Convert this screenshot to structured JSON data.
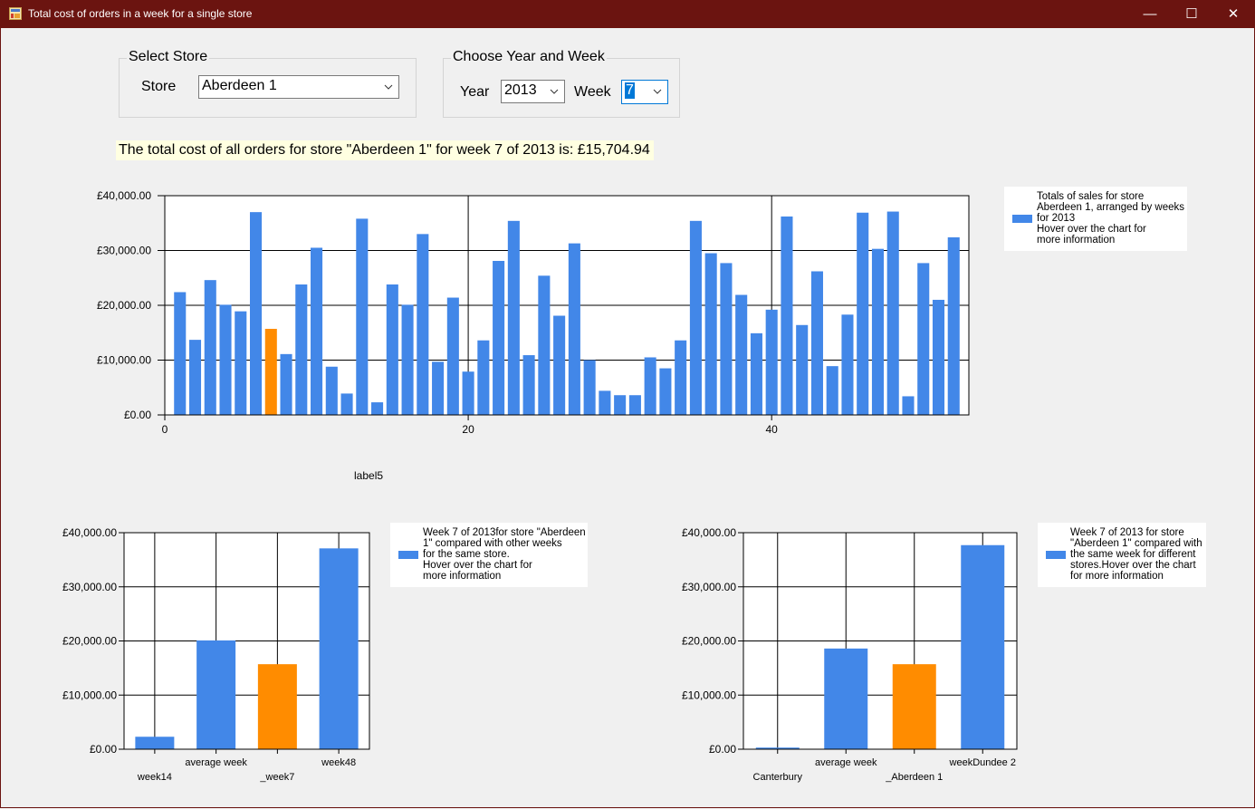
{
  "window": {
    "title": "Total cost of orders in a week for a single store",
    "controls": {
      "minimize": "—",
      "maximize": "☐",
      "close": "✕"
    }
  },
  "store_group": {
    "title": "Select Store",
    "store_label": "Store",
    "store_value": "Aberdeen 1"
  },
  "period_group": {
    "title": "Choose Year and Week",
    "year_label": "Year",
    "year_value": "2013",
    "week_label": "Week",
    "week_value": "7"
  },
  "summary_text": "The total cost of all orders for store \"Aberdeen 1\" for week 7 of 2013 is: £15,704.94",
  "label5": "label5",
  "colors": {
    "bar": "#4287e8",
    "highlight": "#ff8c00",
    "titlebar": "#6b1410",
    "summary_bg": "#ffffe1"
  },
  "chart_data": [
    {
      "type": "bar",
      "title": "",
      "legend": "Totals of sales for store\nAberdeen 1, arranged by weeks\nfor 2013\nHover over the chart for\nmore information",
      "x": [
        1,
        2,
        3,
        4,
        5,
        6,
        7,
        8,
        9,
        10,
        11,
        12,
        13,
        14,
        15,
        16,
        17,
        18,
        19,
        20,
        21,
        22,
        23,
        24,
        25,
        26,
        27,
        28,
        29,
        30,
        31,
        32,
        33,
        34,
        35,
        36,
        37,
        38,
        39,
        40,
        41,
        42,
        43,
        44,
        45,
        46,
        47,
        48,
        49,
        50,
        51,
        52
      ],
      "values": [
        22400,
        13700,
        24600,
        20100,
        18900,
        37000,
        15704.94,
        11100,
        23800,
        30500,
        8800,
        3900,
        35800,
        2300,
        23800,
        20100,
        33000,
        9700,
        21400,
        7900,
        13600,
        28100,
        35400,
        10900,
        25400,
        18100,
        31300,
        10000,
        4400,
        3600,
        3600,
        10500,
        8500,
        13600,
        35400,
        29500,
        27700,
        21900,
        14900,
        19200,
        36200,
        16400,
        26200,
        8900,
        18300,
        36900,
        30300,
        37100,
        3400,
        27700,
        21000,
        32400
      ],
      "highlight_x": 7,
      "xlim": [
        0,
        53
      ],
      "x_ticks": [
        0,
        20,
        40
      ],
      "ylim": [
        0,
        40000
      ],
      "y_ticks": [
        "£0.00",
        "£10,000.00",
        "£20,000.00",
        "£30,000.00",
        "£40,000.00"
      ],
      "grid": true,
      "legend_position": "right"
    },
    {
      "type": "bar",
      "title": "",
      "legend": "Week 7 of 2013for store \"Aberdeen\n1\" compared with other weeks\nfor the same store.\nHover over the chart for\nmore information",
      "categories": [
        "week14",
        "average week",
        "_week7",
        "week48"
      ],
      "values": [
        2300,
        20100,
        15704.94,
        37100
      ],
      "highlight_index": 2,
      "ylim": [
        0,
        40000
      ],
      "y_ticks": [
        "£0.00",
        "£10,000.00",
        "£20,000.00",
        "£30,000.00",
        "£40,000.00"
      ],
      "grid": true,
      "legend_position": "right"
    },
    {
      "type": "bar",
      "title": "",
      "legend": "Week 7 of 2013 for store\n\"Aberdeen 1\" compared with\nthe same week for different\nstores.Hover over the chart\nfor more information",
      "categories": [
        "Canterbury",
        "average week",
        "_Aberdeen 1",
        "weekDundee 2"
      ],
      "values": [
        300,
        18600,
        15704.94,
        37700
      ],
      "highlight_index": 2,
      "ylim": [
        0,
        40000
      ],
      "y_ticks": [
        "£0.00",
        "£10,000.00",
        "£20,000.00",
        "£30,000.00",
        "£40,000.00"
      ],
      "grid": true,
      "legend_position": "right"
    }
  ]
}
